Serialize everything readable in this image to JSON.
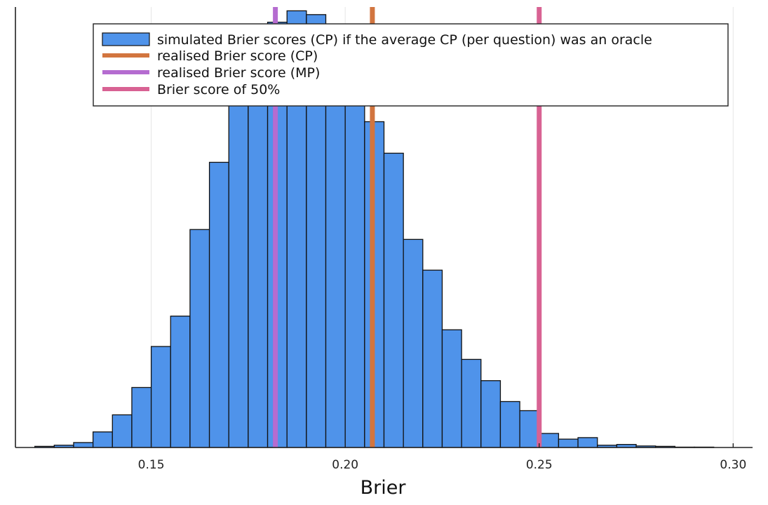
{
  "chart_data": {
    "type": "bar",
    "xlabel": "Brier",
    "ylabel": "",
    "title": "",
    "xlim": [
      0.115,
      0.305
    ],
    "ylim": [
      0,
      1160
    ],
    "grid": true,
    "legend_position": "top-right",
    "x_ticks": [
      {
        "value": 0.15,
        "label": "0.15"
      },
      {
        "value": 0.2,
        "label": "0.20"
      },
      {
        "value": 0.25,
        "label": "0.25"
      },
      {
        "value": 0.3,
        "label": "0.30"
      }
    ],
    "histogram": {
      "name": "simulated Brier scores (CP) if the average CP (per question) was an oracle",
      "color": "#4f93ea",
      "edge_color": "#111111",
      "bin_width": 0.005,
      "bins": [
        {
          "start": 0.12,
          "count": 3
        },
        {
          "start": 0.125,
          "count": 6
        },
        {
          "start": 0.13,
          "count": 13
        },
        {
          "start": 0.135,
          "count": 41
        },
        {
          "start": 0.14,
          "count": 86
        },
        {
          "start": 0.145,
          "count": 158
        },
        {
          "start": 0.15,
          "count": 266
        },
        {
          "start": 0.155,
          "count": 346
        },
        {
          "start": 0.16,
          "count": 574
        },
        {
          "start": 0.165,
          "count": 751
        },
        {
          "start": 0.17,
          "count": 1000
        },
        {
          "start": 0.175,
          "count": 1080
        },
        {
          "start": 0.18,
          "count": 1120
        },
        {
          "start": 0.185,
          "count": 1150
        },
        {
          "start": 0.19,
          "count": 1140
        },
        {
          "start": 0.195,
          "count": 1100
        },
        {
          "start": 0.2,
          "count": 1050
        },
        {
          "start": 0.205,
          "count": 858
        },
        {
          "start": 0.21,
          "count": 775
        },
        {
          "start": 0.215,
          "count": 548
        },
        {
          "start": 0.22,
          "count": 467
        },
        {
          "start": 0.225,
          "count": 310
        },
        {
          "start": 0.23,
          "count": 232
        },
        {
          "start": 0.235,
          "count": 176
        },
        {
          "start": 0.24,
          "count": 121
        },
        {
          "start": 0.245,
          "count": 97
        },
        {
          "start": 0.25,
          "count": 37
        },
        {
          "start": 0.255,
          "count": 22
        },
        {
          "start": 0.26,
          "count": 26
        },
        {
          "start": 0.265,
          "count": 6
        },
        {
          "start": 0.27,
          "count": 8
        },
        {
          "start": 0.275,
          "count": 4
        },
        {
          "start": 0.28,
          "count": 3
        },
        {
          "start": 0.285,
          "count": 1
        },
        {
          "start": 0.29,
          "count": 1
        }
      ]
    },
    "vlines": [
      {
        "name": "realised Brier score (CP)",
        "x": 0.207,
        "color": "#d2753f"
      },
      {
        "name": "realised Brier score (MP)",
        "x": 0.182,
        "color": "#b56cd0"
      },
      {
        "name": "Brier score of 50%",
        "x": 0.25,
        "color": "#d86293"
      }
    ]
  }
}
